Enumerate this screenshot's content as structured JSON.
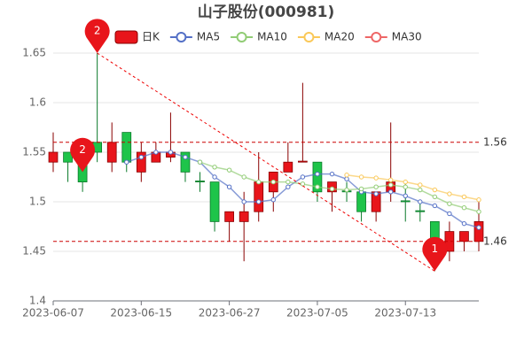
{
  "chart_data": {
    "type": "candlestick",
    "title": "山子股份(000981)",
    "categories": [
      "2023-06-07",
      null,
      null,
      null,
      null,
      null,
      "2023-06-15",
      null,
      null,
      null,
      null,
      null,
      "2023-06-27",
      null,
      null,
      null,
      null,
      null,
      "2023-07-05",
      null,
      null,
      null,
      null,
      null,
      "2023-07-13",
      null,
      null,
      null,
      null,
      null
    ],
    "ylim": [
      1.4,
      1.65
    ],
    "yticks": [
      1.4,
      1.45,
      1.5,
      1.55,
      1.6,
      1.65
    ],
    "grid": true,
    "candles": {
      "name": "日K",
      "up_color": "#e8151b",
      "down_color": "#1ec44a",
      "open": [
        1.54,
        1.55,
        1.54,
        1.56,
        1.54,
        1.57,
        1.53,
        1.54,
        1.545,
        1.55,
        1.521,
        1.52,
        1.48,
        1.48,
        1.49,
        1.51,
        1.53,
        1.54,
        1.54,
        1.51,
        1.511,
        1.51,
        1.49,
        1.51,
        1.501,
        1.491,
        1.48,
        1.45,
        1.46,
        1.46
      ],
      "close": [
        1.55,
        1.54,
        1.52,
        1.55,
        1.56,
        1.54,
        1.55,
        1.55,
        1.55,
        1.53,
        1.52,
        1.48,
        1.49,
        1.49,
        1.52,
        1.53,
        1.54,
        1.541,
        1.51,
        1.52,
        1.51,
        1.49,
        1.51,
        1.52,
        1.5,
        1.49,
        1.46,
        1.47,
        1.47,
        1.48
      ],
      "low": [
        1.53,
        1.52,
        1.51,
        1.54,
        1.53,
        1.53,
        1.52,
        1.54,
        1.54,
        1.52,
        1.51,
        1.47,
        1.46,
        1.44,
        1.48,
        1.49,
        1.53,
        1.54,
        1.5,
        1.49,
        1.5,
        1.48,
        1.48,
        1.5,
        1.48,
        1.48,
        1.43,
        1.44,
        1.45,
        1.45
      ],
      "high": [
        1.57,
        1.55,
        1.55,
        1.65,
        1.58,
        1.57,
        1.56,
        1.56,
        1.59,
        1.55,
        1.53,
        1.52,
        1.49,
        1.51,
        1.55,
        1.53,
        1.56,
        1.62,
        1.54,
        1.52,
        1.52,
        1.51,
        1.51,
        1.58,
        1.52,
        1.5,
        1.48,
        1.48,
        1.47,
        1.5
      ]
    },
    "series": [
      {
        "name": "MA5",
        "color": "#5470c6",
        "values": [
          null,
          null,
          null,
          null,
          null,
          1.54,
          1.545,
          1.55,
          1.55,
          1.545,
          1.54,
          1.525,
          1.515,
          1.5,
          1.5,
          1.502,
          1.515,
          1.525,
          1.528,
          1.528,
          1.523,
          1.51,
          1.508,
          1.51,
          1.506,
          1.5,
          1.496,
          1.488,
          1.478,
          1.474
        ]
      },
      {
        "name": "MA10",
        "color": "#91cc75",
        "values": [
          null,
          null,
          null,
          null,
          null,
          null,
          null,
          null,
          null,
          null,
          1.54,
          1.535,
          1.532,
          1.525,
          1.52,
          1.52,
          1.52,
          1.518,
          1.515,
          1.513,
          1.512,
          1.513,
          1.515,
          1.517,
          1.515,
          1.512,
          1.505,
          1.498,
          1.494,
          1.49
        ]
      },
      {
        "name": "MA20",
        "color": "#fac858",
        "values": [
          null,
          null,
          null,
          null,
          null,
          null,
          null,
          null,
          null,
          null,
          null,
          null,
          null,
          null,
          null,
          null,
          null,
          null,
          null,
          null,
          1.527,
          1.525,
          1.524,
          1.522,
          1.52,
          1.517,
          1.512,
          1.508,
          1.505,
          1.502
        ]
      },
      {
        "name": "MA30",
        "color": "#ee6666",
        "values": [
          null,
          null,
          null,
          null,
          null,
          null,
          null,
          null,
          null,
          null,
          null,
          null,
          null,
          null,
          null,
          null,
          null,
          null,
          null,
          null,
          null,
          null,
          null,
          null,
          null,
          null,
          null,
          null,
          null,
          null
        ]
      }
    ],
    "mark_lines": [
      1.56,
      1.46
    ],
    "mark_points": [
      {
        "label": "2",
        "index": 3,
        "value": 1.65
      },
      {
        "label": "2",
        "index": 2,
        "value": 1.53
      },
      {
        "label": "1",
        "index": 26,
        "value": 1.43
      }
    ]
  }
}
